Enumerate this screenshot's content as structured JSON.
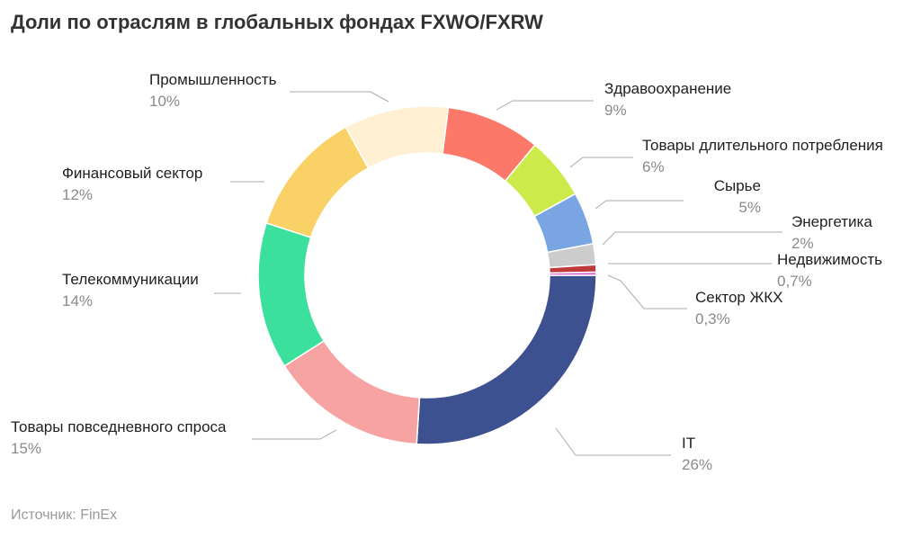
{
  "title": "Доли по отраслям в глобальных фондах FXWO/FXRW",
  "source": "Источник: FinEx",
  "chart_data": {
    "type": "pie",
    "title": "Доли по отраслям в глобальных фондах FXWO/FXRW",
    "donut": true,
    "unit": "%",
    "slices": [
      {
        "name": "IT",
        "value": 26,
        "label": "26%",
        "color": "#3d5191"
      },
      {
        "name": "Товары повседневного спроса",
        "value": 15,
        "label": "15%",
        "color": "#f7a3a4"
      },
      {
        "name": "Телекоммуникации",
        "value": 14,
        "label": "14%",
        "color": "#3be09c"
      },
      {
        "name": "Финансовый сектор",
        "value": 12,
        "label": "12%",
        "color": "#fad166"
      },
      {
        "name": "Промышленность",
        "value": 10,
        "label": "10%",
        "color": "#fff0d4"
      },
      {
        "name": "Здравоохранение",
        "value": 9,
        "label": "9%",
        "color": "#fc7868"
      },
      {
        "name": "Товары длительного потребления",
        "value": 6,
        "label": "6%",
        "color": "#cceb4a"
      },
      {
        "name": "Сырье",
        "value": 5,
        "label": "5%",
        "color": "#79a6e3"
      },
      {
        "name": "Энергетика",
        "value": 2,
        "label": "2%",
        "color": "#cccccc"
      },
      {
        "name": "Недвижимость",
        "value": 0.7,
        "label": "0,7%",
        "color": "#c0393b"
      },
      {
        "name": "Сектор ЖКХ",
        "value": 0.3,
        "label": "0,3%",
        "color": "#e15ed3"
      }
    ],
    "legend": "none"
  }
}
